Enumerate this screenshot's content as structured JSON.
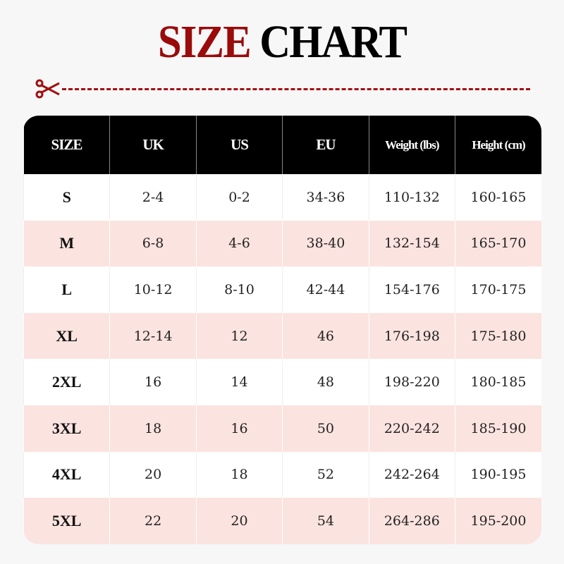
{
  "title": {
    "part1": "SIZE",
    "part2": "CHART",
    "part1_color": "#9a0b0b",
    "part2_color": "#000000"
  },
  "cut_line": {
    "icon": "scissors-icon",
    "color": "#a10f12"
  },
  "table": {
    "headers": [
      "SIZE",
      "UK",
      "US",
      "EU",
      "Weight (lbs)",
      "Height (cm)"
    ],
    "rows": [
      [
        "S",
        "2-4",
        "0-2",
        "34-36",
        "110-132",
        "160-165"
      ],
      [
        "M",
        "6-8",
        "4-6",
        "38-40",
        "132-154",
        "165-170"
      ],
      [
        "L",
        "10-12",
        "8-10",
        "42-44",
        "154-176",
        "170-175"
      ],
      [
        "XL",
        "12-14",
        "12",
        "46",
        "176-198",
        "175-180"
      ],
      [
        "2XL",
        "16",
        "14",
        "48",
        "198-220",
        "180-185"
      ],
      [
        "3XL",
        "18",
        "16",
        "50",
        "220-242",
        "185-190"
      ],
      [
        "4XL",
        "20",
        "18",
        "52",
        "242-264",
        "190-195"
      ],
      [
        "5XL",
        "22",
        "20",
        "54",
        "264-286",
        "195-200"
      ]
    ],
    "stripe_color": "#fbe3df"
  }
}
